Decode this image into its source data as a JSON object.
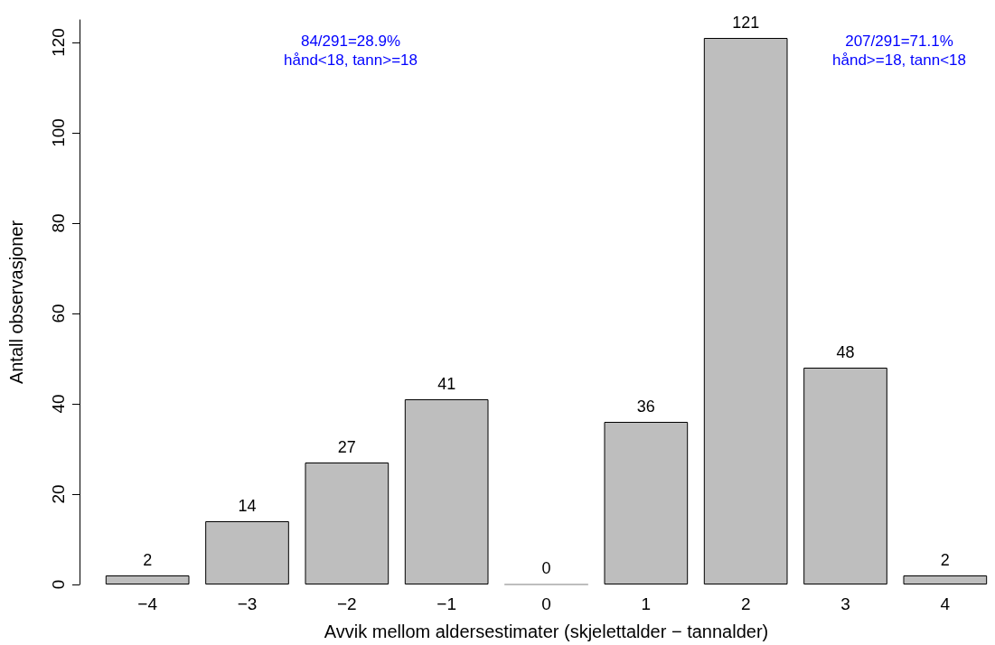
{
  "chart_data": {
    "type": "bar",
    "xlabel": "Avvik mellom aldersestimater (skjelettalder − tannalder)",
    "ylabel": "Antall observasjoner",
    "categories": [
      "−4",
      "−3",
      "−2",
      "−1",
      "0",
      "1",
      "2",
      "3",
      "4"
    ],
    "values": [
      2,
      14,
      27,
      41,
      0,
      36,
      121,
      48,
      2
    ],
    "color": "#bebebe",
    "ylim": [
      0,
      125
    ],
    "yticks": [
      0,
      20,
      40,
      60,
      80,
      100,
      120
    ],
    "grid": false,
    "data_labels": true,
    "annotations": [
      "84/291=28.9%\nhånd<18, tann>=18",
      "207/291=71.1%\nhånd>=18, tann<18"
    ]
  }
}
